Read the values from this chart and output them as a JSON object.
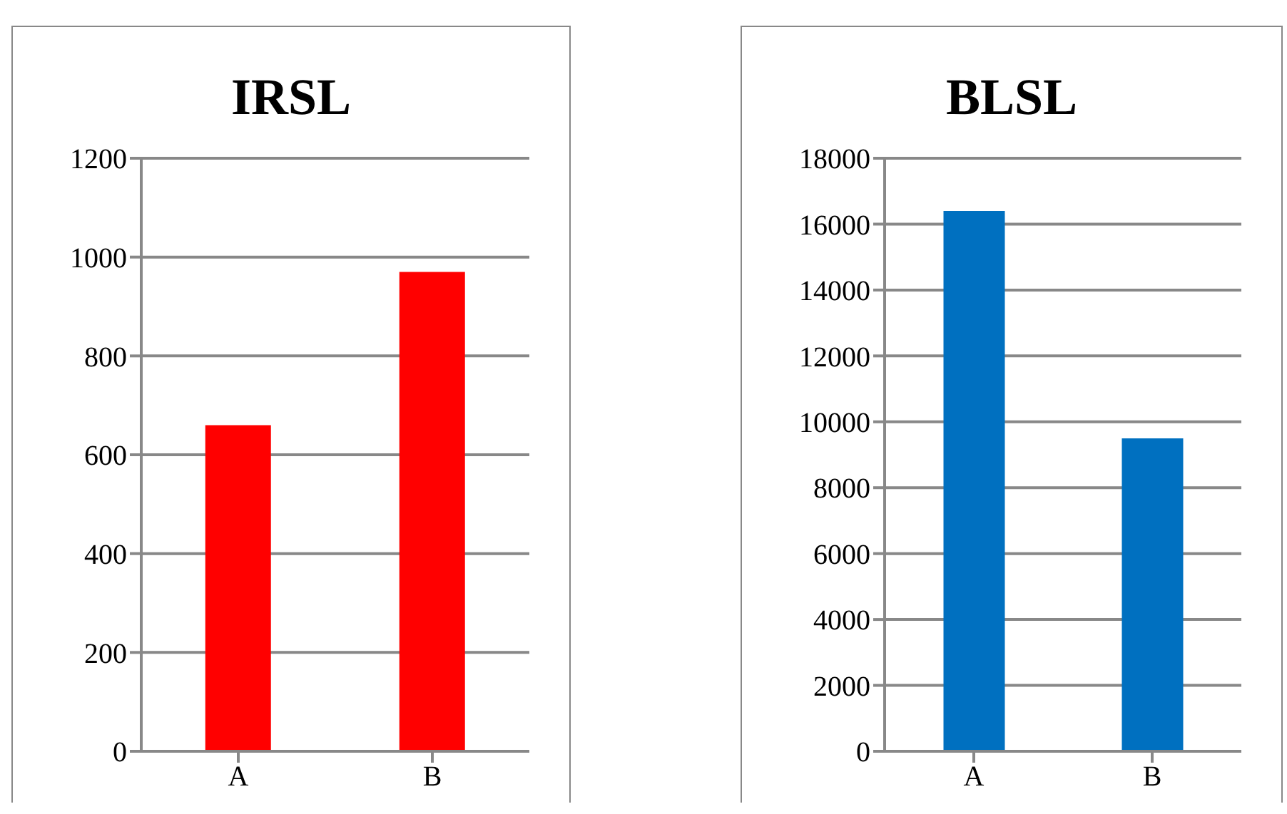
{
  "chart_data": [
    {
      "type": "bar",
      "title": "IRSL",
      "categories": [
        "A",
        "B"
      ],
      "values": [
        660,
        970
      ],
      "color": "#ff0000",
      "ylim": [
        0,
        1200
      ],
      "yticks": [
        0,
        200,
        400,
        600,
        800,
        1000,
        1200
      ],
      "grid": "y"
    },
    {
      "type": "bar",
      "title": "BLSL",
      "categories": [
        "A",
        "B"
      ],
      "values": [
        16400,
        9500
      ],
      "color": "#0070c0",
      "ylim": [
        0,
        18000
      ],
      "yticks": [
        0,
        2000,
        4000,
        6000,
        8000,
        10000,
        12000,
        14000,
        16000,
        18000
      ],
      "grid": "y"
    }
  ]
}
